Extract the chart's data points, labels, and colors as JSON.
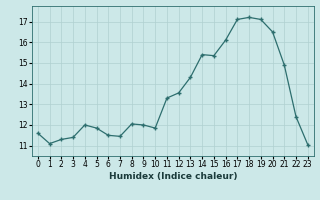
{
  "x": [
    0,
    1,
    2,
    3,
    4,
    5,
    6,
    7,
    8,
    9,
    10,
    11,
    12,
    13,
    14,
    15,
    16,
    17,
    18,
    19,
    20,
    21,
    22,
    23
  ],
  "y": [
    11.6,
    11.1,
    11.3,
    11.4,
    12.0,
    11.85,
    11.5,
    11.45,
    12.05,
    12.0,
    11.85,
    13.3,
    13.55,
    14.3,
    15.4,
    15.35,
    16.1,
    17.1,
    17.2,
    17.1,
    16.5,
    14.9,
    12.4,
    11.05
  ],
  "title": "",
  "xlabel": "Humidex (Indice chaleur)",
  "ylabel": "",
  "ylim": [
    10.5,
    17.75
  ],
  "xlim": [
    -0.5,
    23.5
  ],
  "line_color": "#2d6e6e",
  "marker": "+",
  "bg_color": "#cce8e8",
  "grid_color": "#b0d0d0",
  "yticks": [
    11,
    12,
    13,
    14,
    15,
    16,
    17
  ],
  "xticks": [
    0,
    1,
    2,
    3,
    4,
    5,
    6,
    7,
    8,
    9,
    10,
    11,
    12,
    13,
    14,
    15,
    16,
    17,
    18,
    19,
    20,
    21,
    22,
    23
  ],
  "tick_fontsize": 5.5,
  "xlabel_fontsize": 6.5
}
